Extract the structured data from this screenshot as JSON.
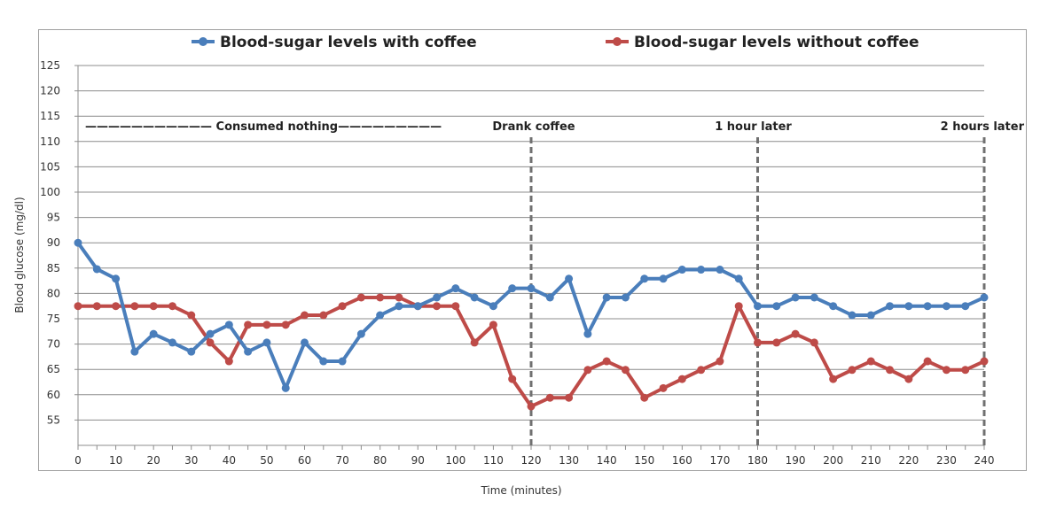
{
  "chart_data": {
    "type": "line",
    "title": "",
    "xlabel": "Time (minutes)",
    "ylabel": "Blood glucose (mg/dl)",
    "xlim": [
      0,
      240
    ],
    "ylim": [
      50,
      125
    ],
    "x_ticks": [
      0,
      10,
      20,
      30,
      40,
      50,
      60,
      70,
      80,
      90,
      100,
      110,
      120,
      130,
      140,
      150,
      160,
      170,
      180,
      190,
      200,
      210,
      220,
      230,
      240
    ],
    "y_ticks": [
      55,
      60,
      65,
      70,
      75,
      80,
      85,
      90,
      95,
      100,
      105,
      110,
      115,
      120,
      125
    ],
    "grid": "horizontal",
    "legend": "top",
    "x": [
      0,
      5,
      10,
      15,
      20,
      25,
      30,
      35,
      40,
      45,
      50,
      55,
      60,
      65,
      70,
      75,
      80,
      85,
      90,
      95,
      100,
      105,
      110,
      115,
      120,
      125,
      130,
      135,
      140,
      145,
      150,
      155,
      160,
      165,
      170,
      175,
      180,
      185,
      190,
      195,
      200,
      205,
      210,
      215,
      220,
      225,
      230,
      235,
      240
    ],
    "series": [
      {
        "name": "Blood-sugar levels with coffee",
        "color": "#4a7ebb",
        "values": [
          90,
          84.8,
          82.9,
          68.5,
          72,
          70.3,
          68.5,
          72,
          73.8,
          68.5,
          70.3,
          61.3,
          70.3,
          66.6,
          66.6,
          72,
          75.7,
          77.5,
          77.5,
          79.2,
          81,
          79.2,
          77.5,
          81,
          81,
          79.2,
          82.9,
          72,
          79.2,
          79.2,
          82.9,
          82.9,
          84.7,
          84.7,
          84.7,
          82.9,
          77.5,
          77.5,
          79.2,
          79.2,
          77.5,
          75.7,
          75.7,
          77.5,
          77.5,
          77.5,
          77.5,
          77.5,
          79.2
        ]
      },
      {
        "name": "Blood-sugar levels without coffee",
        "color": "#be4b48",
        "values": [
          77.5,
          77.5,
          77.5,
          77.5,
          77.5,
          77.5,
          75.7,
          70.3,
          66.6,
          73.8,
          73.8,
          73.8,
          75.7,
          75.7,
          77.5,
          79.2,
          79.2,
          79.2,
          77.5,
          77.5,
          77.5,
          70.3,
          73.8,
          63.1,
          57.7,
          59.4,
          59.4,
          64.9,
          66.6,
          64.9,
          59.4,
          61.3,
          63.1,
          64.9,
          66.6,
          77.5,
          70.3,
          70.3,
          72,
          70.3,
          63.1,
          64.9,
          66.6,
          64.9,
          63.1,
          66.6,
          64.9,
          64.9,
          66.6
        ]
      }
    ],
    "annotations": [
      {
        "text": "——————————— Consumed nothing—————————",
        "x": 45
      },
      {
        "text": "Drank coffee",
        "x": 120
      },
      {
        "text": "1 hour later",
        "x": 180
      },
      {
        "text": "2 hours later",
        "x": 240
      }
    ],
    "markers": [
      120,
      180,
      240
    ]
  }
}
